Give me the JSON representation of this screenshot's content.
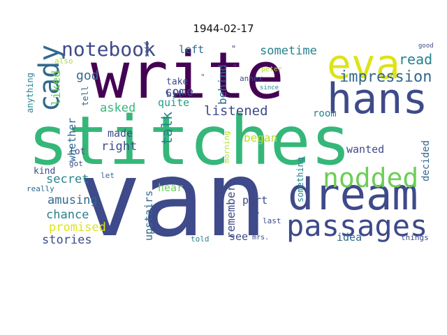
{
  "title": "1944-02-17",
  "colors": {
    "background": "#ffffff",
    "dark_purple": "#440154",
    "indigo": "#3e4a89",
    "blue": "#31688e",
    "teal": "#26828e",
    "green_teal": "#1f9e89",
    "green": "#35b779",
    "light_green": "#6ece58",
    "yellow_green": "#b5de2b",
    "yellow": "#fde725"
  },
  "words": [
    {
      "text": "van",
      "color": "#3e4a89"
    },
    {
      "text": "stitches",
      "color": "#35b779"
    },
    {
      "text": "write",
      "color": "#440154"
    },
    {
      "text": "dream",
      "color": "#3e4a89"
    },
    {
      "text": "hans",
      "color": "#3e4a89"
    },
    {
      "text": "eva",
      "color": "#dde318"
    },
    {
      "text": "passages",
      "color": "#3e4a89"
    },
    {
      "text": "nodded",
      "color": "#6ece58"
    },
    {
      "text": "cady",
      "color": "#31688e"
    },
    {
      "text": "notebook",
      "color": "#3e4a89"
    },
    {
      "text": "impression",
      "color": "#31688e"
    },
    {
      "text": "sometime",
      "color": "#26828e"
    },
    {
      "text": "read",
      "color": "#26828e"
    },
    {
      "text": "listened",
      "color": "#3e4a89"
    },
    {
      "text": "talk",
      "color": "#26828e"
    },
    {
      "text": "come",
      "color": "#3e4a89"
    },
    {
      "text": "asked",
      "color": "#35b779"
    },
    {
      "text": "quite",
      "color": "#1f9e89"
    },
    {
      "text": "god",
      "color": "#31688e"
    },
    {
      "text": "liked",
      "color": "#6ece58"
    },
    {
      "text": "left",
      "color": "#31688e"
    },
    {
      "text": "behind",
      "color": "#31688e"
    },
    {
      "text": "bit",
      "color": "#3e4a89"
    },
    {
      "text": "take",
      "color": "#3e4a89"
    },
    {
      "text": "whether",
      "color": "#31688e"
    },
    {
      "text": "made",
      "color": "#3e4a89"
    },
    {
      "text": "right",
      "color": "#3e4a89"
    },
    {
      "text": "secret",
      "color": "#26828e"
    },
    {
      "text": "amusing",
      "color": "#31688e"
    },
    {
      "text": "chance",
      "color": "#26828e"
    },
    {
      "text": "promised",
      "color": "#dde318"
    },
    {
      "text": "stories",
      "color": "#3e4a89"
    },
    {
      "text": "upstairs",
      "color": "#31688e"
    },
    {
      "text": "remember",
      "color": "#3e4a89"
    },
    {
      "text": "began",
      "color": "#b5de2b"
    },
    {
      "text": "hear",
      "color": "#6ece58"
    },
    {
      "text": "part",
      "color": "#3e4a89"
    },
    {
      "text": "see",
      "color": "#3e4a89"
    },
    {
      "text": "room",
      "color": "#26828e"
    },
    {
      "text": "wanted",
      "color": "#3e4a89"
    },
    {
      "text": "decided",
      "color": "#31688e"
    },
    {
      "text": "idea",
      "color": "#31688e"
    },
    {
      "text": "things",
      "color": "#3e4a89"
    },
    {
      "text": "told",
      "color": "#26828e"
    },
    {
      "text": "mrs.",
      "color": "#3e4a89"
    },
    {
      "text": "last",
      "color": "#3e4a89"
    },
    {
      "text": "d.",
      "color": "#3e4a89"
    },
    {
      "text": "something",
      "color": "#26828e"
    },
    {
      "text": "morning",
      "color": "#b5de2b"
    },
    {
      "text": "annex",
      "color": "#3e4a89"
    },
    {
      "text": "since",
      "color": "#26828e"
    },
    {
      "text": "peter",
      "color": "#b5de2b"
    },
    {
      "text": "said",
      "color": "#3e4a89"
    },
    {
      "text": "good",
      "color": "#3e4a89"
    },
    {
      "text": "also",
      "color": "#b5de2b"
    },
    {
      "text": "anything",
      "color": "#26828e"
    },
    {
      "text": "tell",
      "color": "#31688e"
    },
    {
      "text": "kind",
      "color": "#3e4a89"
    },
    {
      "text": "lot",
      "color": "#3e4a89"
    },
    {
      "text": "got",
      "color": "#3e4a89"
    },
    {
      "text": "let",
      "color": "#31688e"
    },
    {
      "text": "really",
      "color": "#31688e"
    },
    {
      "text": "\"",
      "color": "#3e4a89"
    },
    {
      "text": "\"",
      "color": "#31688e"
    },
    {
      "text": "\"",
      "color": "#3e4a89"
    }
  ]
}
